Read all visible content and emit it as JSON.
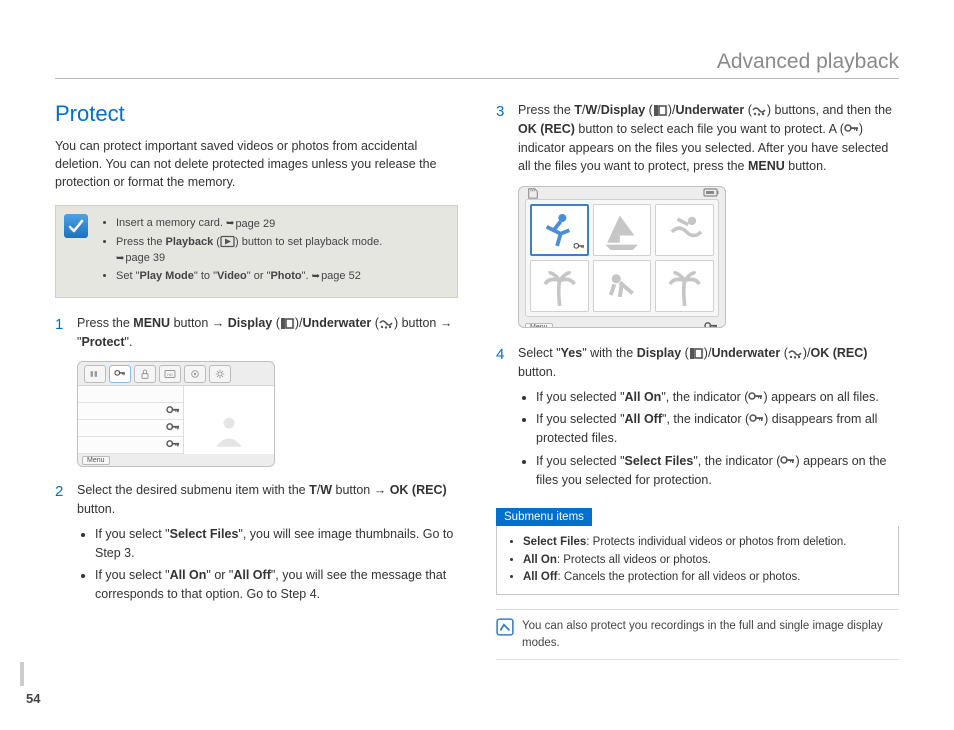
{
  "chapter": "Advanced playback",
  "section_title": "Protect",
  "intro": "You can protect important saved videos or photos from accidental deletion. You can not delete protected images unless you release the protection or format the memory.",
  "tips": {
    "items": [
      {
        "pre": "Insert a memory card. ",
        "ref": "page 29"
      },
      {
        "pre": "Press the ",
        "bold": "Playback",
        "post": " button to set playback mode. ",
        "ref": "page 39",
        "has_icon": true
      },
      {
        "pre": "Set \"",
        "bold": "Play Mode",
        "mid": "\" to \"",
        "bold2": "Video",
        "mid2": "\" or \"",
        "bold3": "Photo",
        "post": "\". ",
        "ref": "page 52"
      }
    ]
  },
  "steps_left": [
    {
      "n": "1",
      "parts": [
        "Press the ",
        "MENU",
        " button → ",
        "Display",
        " (",
        "ICON_DISP",
        ")/",
        "Underwater",
        " (",
        "ICON_UW",
        ") button → \"",
        "Protect",
        "\"."
      ]
    },
    {
      "n": "2",
      "parts": [
        "Select the desired submenu item with the ",
        "T",
        "/",
        "W",
        " button → ",
        "OK (REC)",
        " button."
      ],
      "bullets": [
        {
          "parts": [
            "If you select \"",
            "Select Files",
            "\", you will see image thumbnails. Go to Step 3."
          ]
        },
        {
          "parts": [
            "If you select \"",
            "All On",
            "\" or \"",
            "All Off",
            "\", you will see the message that corresponds to that option. Go to Step 4."
          ]
        }
      ]
    }
  ],
  "steps_right": [
    {
      "n": "3",
      "parts": [
        "Press the ",
        "T",
        "/",
        "W",
        "/",
        "Display",
        " (",
        "ICON_DISP",
        ")/",
        "Underwater",
        " (",
        "ICON_UW",
        ") buttons, and then the ",
        "OK (REC)",
        " button to select each file you want to protect. A (",
        "ICON_KEY",
        ") indicator appears on the files you selected. After you have selected all the files you want to protect, press the ",
        "MENU",
        " button."
      ]
    },
    {
      "n": "4",
      "parts": [
        "Select \"",
        "Yes",
        "\" with the ",
        "Display",
        " (",
        "ICON_DISP",
        ")/",
        "Underwater",
        " (",
        "ICON_UW",
        ")/",
        "OK (REC)",
        " button."
      ],
      "bullets": [
        {
          "parts": [
            "If you selected \"",
            "All On",
            "\", the indicator (",
            "ICON_KEY",
            ") appears on all files."
          ]
        },
        {
          "parts": [
            "If you selected \"",
            "All Off",
            "\", the indicator (",
            "ICON_KEY",
            ") disappears from all protected files."
          ]
        },
        {
          "parts": [
            "If you selected \"",
            "Select Files",
            "\", the indicator (",
            "ICON_KEY",
            ") appears on the files you selected for protection."
          ]
        }
      ]
    }
  ],
  "submenu": {
    "title": "Submenu items",
    "items": [
      {
        "label": "Select Files",
        "desc": ": Protects individual videos or photos from deletion."
      },
      {
        "label": "All On",
        "desc": ": Protects all videos or photos."
      },
      {
        "label": "All Off",
        "desc": ": Cancels the protection for all videos or photos."
      }
    ]
  },
  "note": "You can also protect you recordings in the full and single image display modes.",
  "page_number": "54",
  "shot1": {
    "menu": "Menu"
  },
  "shot2": {
    "menu": "Menu"
  },
  "colors": {
    "accent": "#0070d0",
    "muted_bg": "#e6e6e1",
    "border": "#cfcfc7"
  }
}
